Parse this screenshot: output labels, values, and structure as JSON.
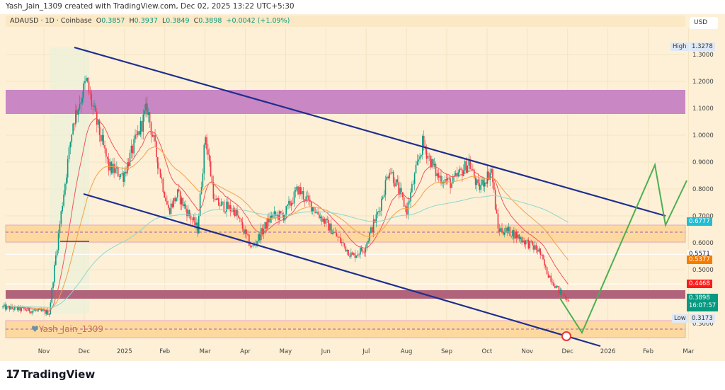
{
  "credit": "Yash_Jain_1309 created with TradingView.com, Dec 02, 2025 13:22 UTC+5:30",
  "legend": {
    "symbol": "ADAUSD · 1D · Coinbase",
    "o_label": "O",
    "o": "0.3857",
    "h_label": "H",
    "h": "0.3937",
    "l_label": "L",
    "l": "0.3849",
    "c_label": "C",
    "c": "0.3898",
    "change": "+0.0042 (+1.09%)"
  },
  "currency_button": "USD",
  "watermark": "Yash_Jain_1309",
  "footer_logo": "TradingView",
  "price_axis": {
    "ticks": [
      "1.3000",
      "1.2000",
      "1.1000",
      "1.0000",
      "0.9000",
      "0.8000",
      "0.7000",
      "0.6000",
      "0.5000",
      "0.3000"
    ],
    "tick_values": [
      1.3,
      1.2,
      1.1,
      1.0,
      0.9,
      0.8,
      0.7,
      0.6,
      0.5,
      0.3
    ],
    "high_label": "High",
    "high_value": "1.3278",
    "low_label": "Low",
    "low_value": "0.3173",
    "markers": [
      {
        "value": "0.6777",
        "price": 0.6777,
        "bg": "#22bcd4",
        "fg": "#ffffff"
      },
      {
        "value": "0.5571",
        "price": 0.5571,
        "bg": "#ffffff",
        "fg": "#131722"
      },
      {
        "value": "0.5377",
        "price": 0.5377,
        "bg": "#f57c00",
        "fg": "#ffffff"
      },
      {
        "value": "0.4468",
        "price": 0.4468,
        "bg": "#ff1a1a",
        "fg": "#ffffff"
      }
    ],
    "last_price": "0.3898",
    "countdown": "16:07:57"
  },
  "time_axis": [
    "Nov",
    "Dec",
    "2025",
    "Feb",
    "Mar",
    "Apr",
    "May",
    "Jun",
    "Jul",
    "Aug",
    "Sep",
    "Oct",
    "Nov",
    "Dec",
    "2026",
    "Feb",
    "Mar"
  ],
  "colors": {
    "up": "#089981",
    "down": "#f23645",
    "channel": "#1f2e8f",
    "projection": "#4caf50",
    "zone_purple": "#c987c4",
    "zone_maroon": "#b0637a",
    "zone_orange": "#fdd9a0"
  },
  "chart_data": {
    "type": "candlestick",
    "symbol": "ADAUSD",
    "interval": "1D",
    "control_points_days_from_2024_11_01": [
      -31,
      -12,
      4,
      9,
      14,
      22,
      32,
      37,
      49,
      60,
      78,
      86,
      94,
      101,
      116,
      122,
      129,
      144,
      157,
      172,
      181,
      192,
      200,
      212,
      233,
      242,
      253,
      261,
      274,
      286,
      297,
      308,
      321,
      328,
      338,
      343,
      353,
      365,
      374,
      379,
      389,
      396
    ],
    "control_points_close": [
      0.36,
      0.35,
      0.34,
      0.55,
      0.75,
      1.05,
      1.2,
      1.1,
      0.88,
      0.85,
      1.1,
      0.9,
      0.72,
      0.78,
      0.65,
      1.0,
      0.75,
      0.72,
      0.58,
      0.7,
      0.7,
      0.8,
      0.75,
      0.68,
      0.55,
      0.58,
      0.72,
      0.88,
      0.72,
      0.97,
      0.85,
      0.82,
      0.9,
      0.8,
      0.87,
      0.65,
      0.64,
      0.6,
      0.57,
      0.5,
      0.42,
      0.39
    ],
    "moving_averages": [
      "EMA20",
      "EMA50",
      "EMA200"
    ],
    "ylim": [
      0.25,
      1.38
    ]
  }
}
